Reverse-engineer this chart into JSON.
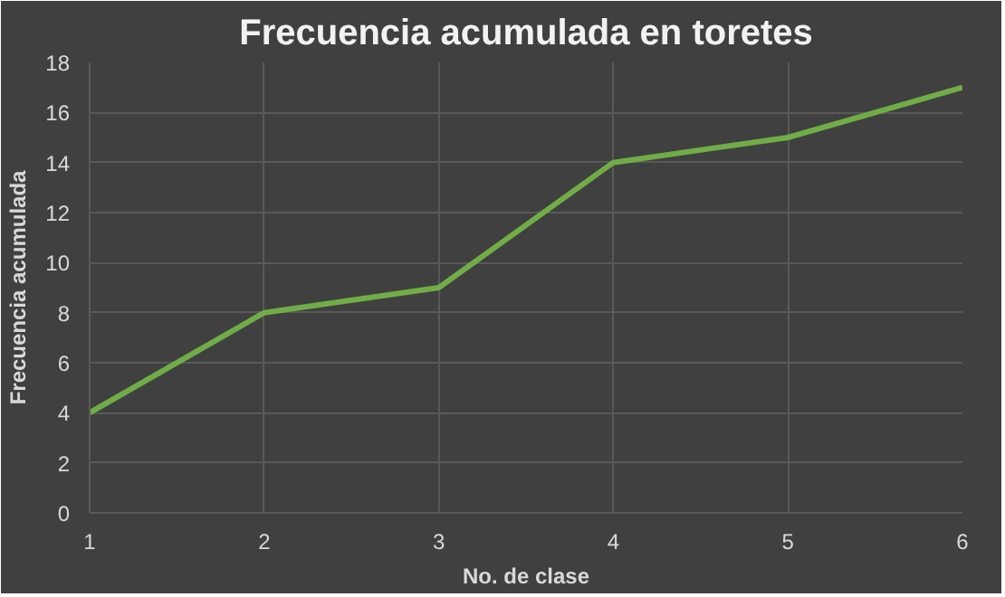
{
  "chart_data": {
    "type": "line",
    "title": "Frecuencia acumulada en toretes",
    "xlabel": "No. de clase",
    "ylabel": "Frecuencia acumulada",
    "x": [
      1,
      2,
      3,
      4,
      5,
      6
    ],
    "series": [
      {
        "color": "#70ad47",
        "values": [
          4,
          8,
          9,
          14,
          15,
          17
        ]
      }
    ],
    "xlim": [
      1,
      6
    ],
    "xticks": [
      1,
      2,
      3,
      4,
      5,
      6
    ],
    "ylim": [
      0,
      18
    ],
    "yticks": [
      0,
      2,
      4,
      6,
      8,
      10,
      12,
      14,
      16,
      18
    ],
    "grid": true,
    "marker": "none",
    "line_style": "solid"
  }
}
